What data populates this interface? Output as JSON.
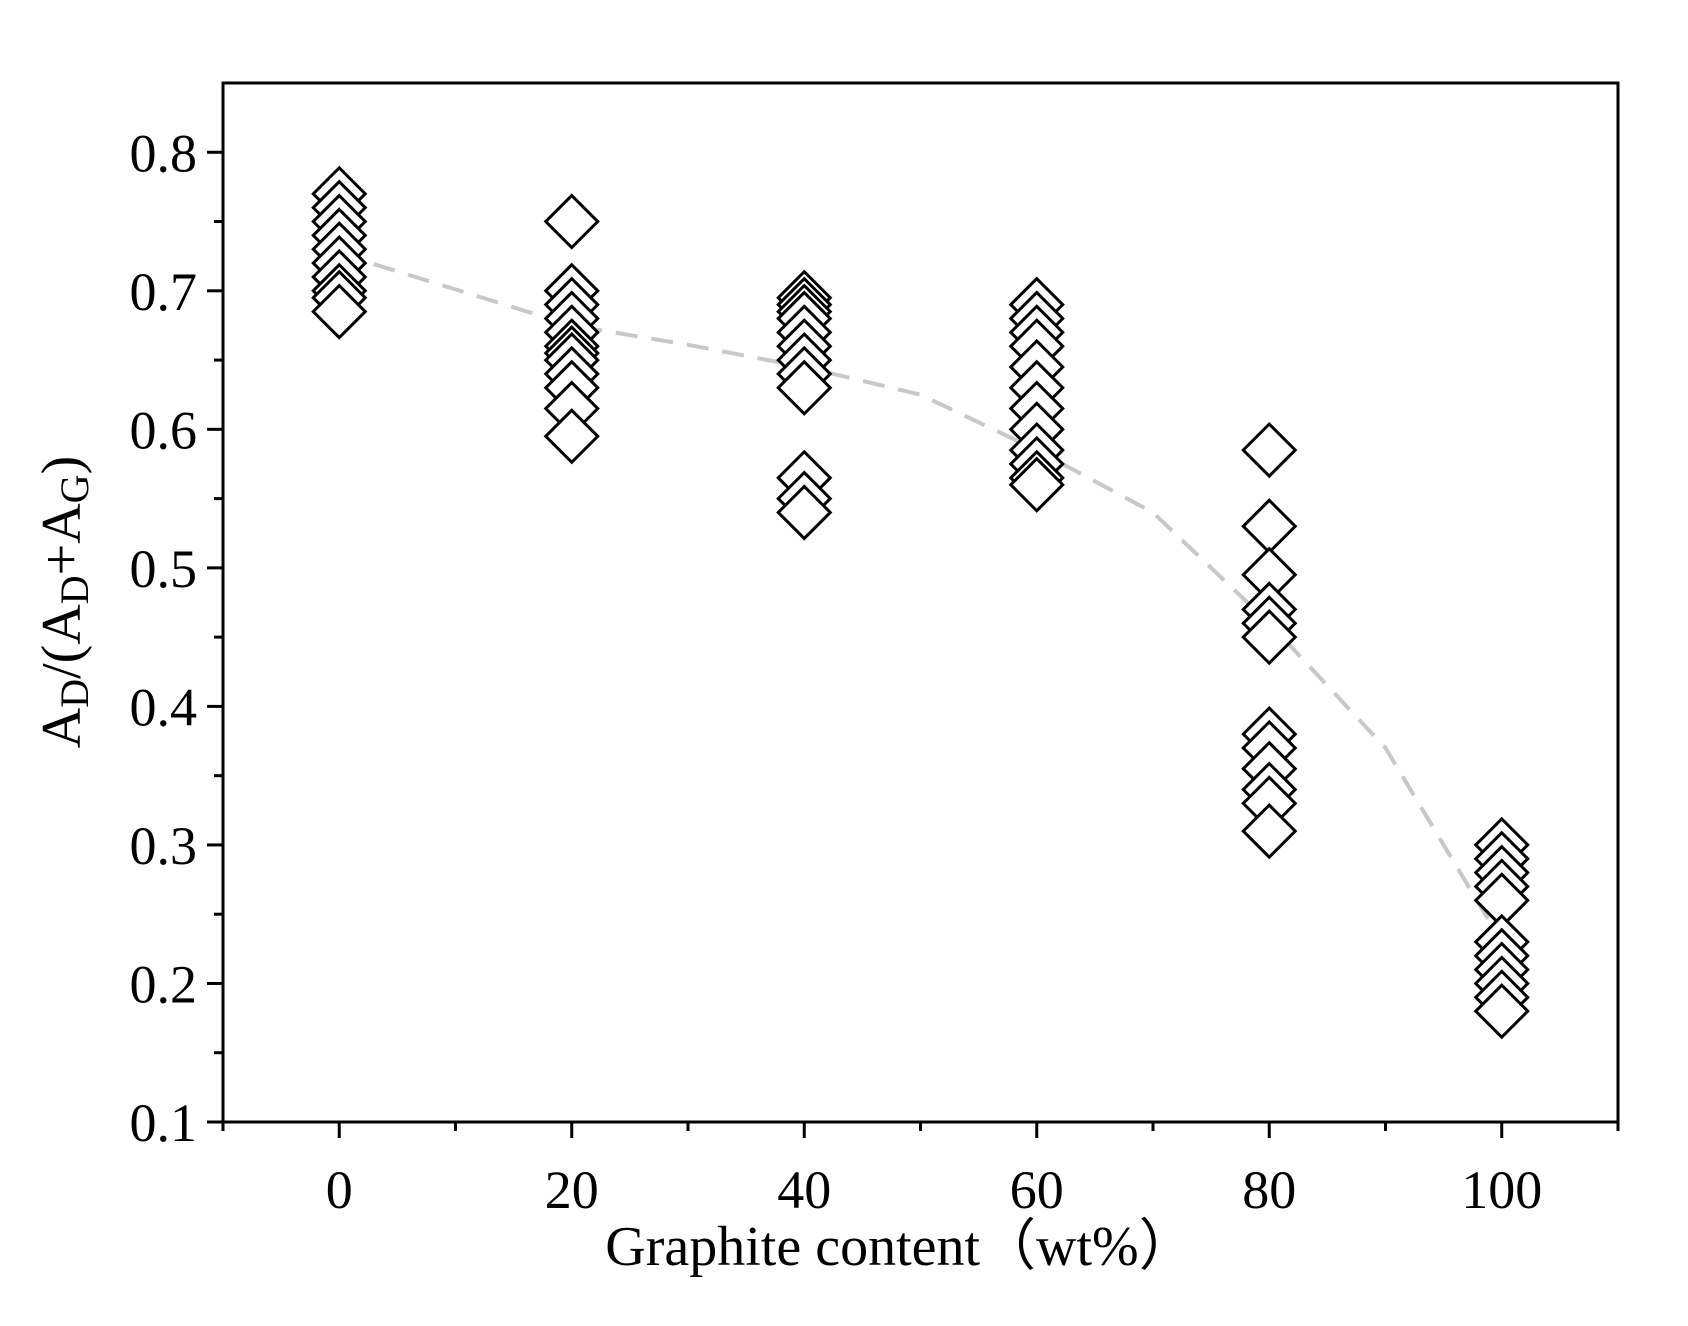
{
  "chart_data": {
    "type": "scatter",
    "title": "",
    "xlabel": "Graphite content（wt%）",
    "ylabel_parts": [
      "A",
      "D",
      "/(A",
      "D",
      "+A",
      "G",
      ")"
    ],
    "xlim": [
      -10,
      110
    ],
    "ylim": [
      0.1,
      0.85
    ],
    "xticks": [
      0,
      20,
      40,
      60,
      80,
      100
    ],
    "xtick_labels": [
      "0",
      "20",
      "40",
      "60",
      "80",
      "100"
    ],
    "yticks": [
      0.1,
      0.2,
      0.3,
      0.4,
      0.5,
      0.6,
      0.7,
      0.8
    ],
    "ytick_labels": [
      "0.1",
      "0.2",
      "0.3",
      "0.4",
      "0.5",
      "0.6",
      "0.7",
      "0.8"
    ],
    "grid": false,
    "legend": "none",
    "marker": "hollow-diamond",
    "series": [
      {
        "marker_color": "#000000",
        "points": [
          [
            0,
            0.77
          ],
          [
            0,
            0.76
          ],
          [
            0,
            0.75
          ],
          [
            0,
            0.74
          ],
          [
            0,
            0.73
          ],
          [
            0,
            0.72
          ],
          [
            0,
            0.71
          ],
          [
            0,
            0.7
          ],
          [
            0,
            0.695
          ],
          [
            0,
            0.685
          ],
          [
            20,
            0.75
          ],
          [
            20,
            0.7
          ],
          [
            20,
            0.69
          ],
          [
            20,
            0.68
          ],
          [
            20,
            0.67
          ],
          [
            20,
            0.66
          ],
          [
            20,
            0.655
          ],
          [
            20,
            0.65
          ],
          [
            20,
            0.64
          ],
          [
            20,
            0.63
          ],
          [
            20,
            0.615
          ],
          [
            20,
            0.595
          ],
          [
            40,
            0.695
          ],
          [
            40,
            0.69
          ],
          [
            40,
            0.685
          ],
          [
            40,
            0.68
          ],
          [
            40,
            0.67
          ],
          [
            40,
            0.66
          ],
          [
            40,
            0.65
          ],
          [
            40,
            0.64
          ],
          [
            40,
            0.63
          ],
          [
            40,
            0.565
          ],
          [
            40,
            0.55
          ],
          [
            40,
            0.54
          ],
          [
            60,
            0.69
          ],
          [
            60,
            0.68
          ],
          [
            60,
            0.67
          ],
          [
            60,
            0.66
          ],
          [
            60,
            0.645
          ],
          [
            60,
            0.63
          ],
          [
            60,
            0.615
          ],
          [
            60,
            0.6
          ],
          [
            60,
            0.585
          ],
          [
            60,
            0.575
          ],
          [
            60,
            0.565
          ],
          [
            60,
            0.56
          ],
          [
            80,
            0.585
          ],
          [
            80,
            0.53
          ],
          [
            80,
            0.495
          ],
          [
            80,
            0.47
          ],
          [
            80,
            0.46
          ],
          [
            80,
            0.45
          ],
          [
            80,
            0.38
          ],
          [
            80,
            0.37
          ],
          [
            80,
            0.355
          ],
          [
            80,
            0.34
          ],
          [
            80,
            0.33
          ],
          [
            80,
            0.31
          ],
          [
            100,
            0.3
          ],
          [
            100,
            0.29
          ],
          [
            100,
            0.28
          ],
          [
            100,
            0.27
          ],
          [
            100,
            0.26
          ],
          [
            100,
            0.23
          ],
          [
            100,
            0.22
          ],
          [
            100,
            0.21
          ],
          [
            100,
            0.2
          ],
          [
            100,
            0.19
          ],
          [
            100,
            0.18
          ]
        ]
      }
    ],
    "trendline": {
      "style": "dashed",
      "color": "#c8c8c8",
      "x": [
        0,
        10,
        20,
        30,
        40,
        50,
        60,
        70,
        80,
        90,
        100
      ],
      "y": [
        0.727,
        0.701,
        0.675,
        0.661,
        0.645,
        0.625,
        0.585,
        0.54,
        0.46,
        0.37,
        0.23
      ]
    }
  }
}
